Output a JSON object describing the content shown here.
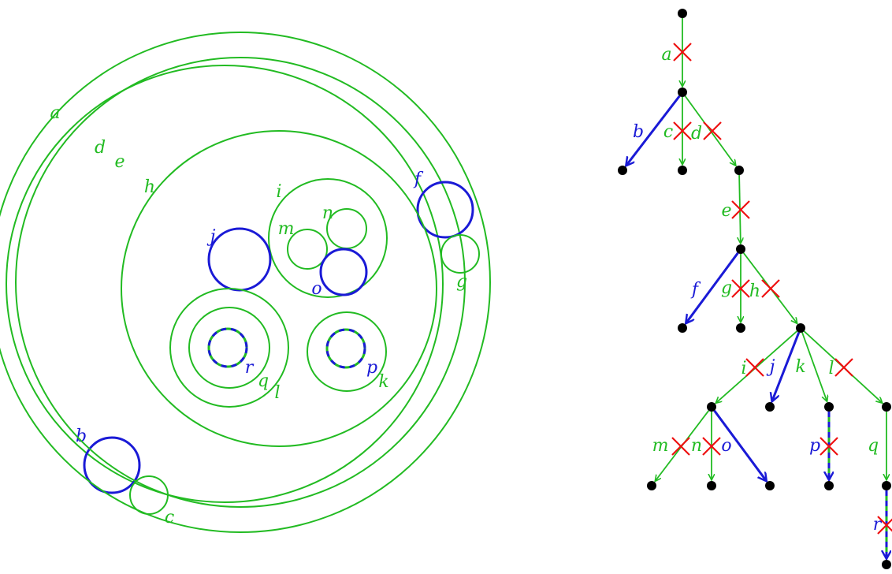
{
  "colors": {
    "green": "#22bb22",
    "blue": "#1a1ad6",
    "red": "#ee1111",
    "node": "#000000",
    "background": "#ffffff"
  },
  "circles": [
    {
      "id": "a",
      "label": "a",
      "color": "green",
      "style": "solid"
    },
    {
      "id": "b",
      "label": "b",
      "color": "blue",
      "style": "solid"
    },
    {
      "id": "c",
      "label": "c",
      "color": "green",
      "style": "solid"
    },
    {
      "id": "d",
      "label": "d",
      "color": "green",
      "style": "solid"
    },
    {
      "id": "e",
      "label": "e",
      "color": "green",
      "style": "solid"
    },
    {
      "id": "f",
      "label": "f",
      "color": "blue",
      "style": "solid"
    },
    {
      "id": "g",
      "label": "g",
      "color": "green",
      "style": "solid"
    },
    {
      "id": "h",
      "label": "h",
      "color": "green",
      "style": "solid"
    },
    {
      "id": "i",
      "label": "i",
      "color": "green",
      "style": "solid"
    },
    {
      "id": "j",
      "label": "j",
      "color": "blue",
      "style": "solid"
    },
    {
      "id": "k",
      "label": "k",
      "color": "green",
      "style": "solid"
    },
    {
      "id": "l",
      "label": "l",
      "color": "green",
      "style": "solid"
    },
    {
      "id": "m",
      "label": "m",
      "color": "green",
      "style": "solid"
    },
    {
      "id": "n",
      "label": "n",
      "color": "green",
      "style": "solid"
    },
    {
      "id": "o",
      "label": "o",
      "color": "blue",
      "style": "solid"
    },
    {
      "id": "p",
      "label": "p",
      "color": "blue-green",
      "style": "dashed"
    },
    {
      "id": "q",
      "label": "q",
      "color": "green",
      "style": "solid"
    },
    {
      "id": "r",
      "label": "r",
      "color": "blue-green",
      "style": "dashed"
    }
  ],
  "tree_edges": [
    {
      "label": "a",
      "from": "root",
      "to": "n1",
      "color": "green",
      "crossed": true
    },
    {
      "label": "b",
      "from": "n1",
      "to": "lb",
      "color": "blue",
      "crossed": false
    },
    {
      "label": "c",
      "from": "n1",
      "to": "lc",
      "color": "green",
      "crossed": true
    },
    {
      "label": "d",
      "from": "n1",
      "to": "n2",
      "color": "green",
      "crossed": true
    },
    {
      "label": "e",
      "from": "n2",
      "to": "n3",
      "color": "green",
      "crossed": true
    },
    {
      "label": "f",
      "from": "n3",
      "to": "lf",
      "color": "blue",
      "crossed": false
    },
    {
      "label": "g",
      "from": "n3",
      "to": "lg",
      "color": "green",
      "crossed": true
    },
    {
      "label": "h",
      "from": "n3",
      "to": "n4",
      "color": "green",
      "crossed": true
    },
    {
      "label": "i",
      "from": "n4",
      "to": "n5",
      "color": "green",
      "crossed": true
    },
    {
      "label": "j",
      "from": "n4",
      "to": "lj",
      "color": "blue",
      "crossed": false
    },
    {
      "label": "k",
      "from": "n4",
      "to": "n6",
      "color": "green",
      "crossed": false
    },
    {
      "label": "l",
      "from": "n4",
      "to": "n7",
      "color": "green",
      "crossed": true
    },
    {
      "label": "m",
      "from": "n5",
      "to": "lm",
      "color": "green",
      "crossed": true
    },
    {
      "label": "n",
      "from": "n5",
      "to": "ln",
      "color": "green",
      "crossed": true
    },
    {
      "label": "o",
      "from": "n5",
      "to": "lo",
      "color": "blue",
      "crossed": false
    },
    {
      "label": "p",
      "from": "n6",
      "to": "lp",
      "color": "blue-green",
      "crossed": true
    },
    {
      "label": "q",
      "from": "n7",
      "to": "n8",
      "color": "green",
      "crossed": false
    },
    {
      "label": "r",
      "from": "n8",
      "to": "lr",
      "color": "blue-green",
      "crossed": true
    }
  ]
}
